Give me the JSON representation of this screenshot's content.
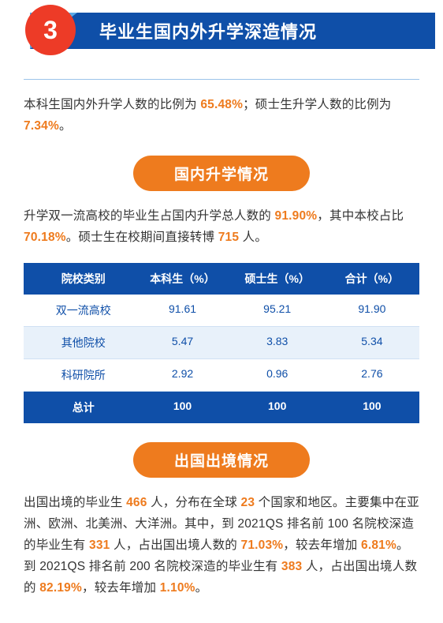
{
  "header": {
    "number": "3",
    "title": "毕业生国内外升学深造情况",
    "circle_bg": "#ed3b27",
    "banner_bg": "#0f4fa8",
    "chevron_bg": "#5aa9e6"
  },
  "intro": {
    "t1": "本科生国内外升学人数的比例为 ",
    "v1": "65.48%",
    "t2": "；硕士生升学人数的比例为 ",
    "v2": "7.34%",
    "t3": "。"
  },
  "sec_domestic": {
    "pill": "国内升学情况",
    "p": {
      "t1": "升学双一流高校的毕业生占国内升学总人数的 ",
      "v1": "91.90%",
      "t2": "，其中本校占比 ",
      "v2": "70.18%",
      "t3": "。硕士生在校期间直接转博 ",
      "v3": "715",
      "t4": " 人。"
    },
    "table": {
      "head": [
        "院校类别",
        "本科生（%）",
        "硕士生（%）",
        "合计（%）"
      ],
      "rows": [
        [
          "双一流高校",
          "91.61",
          "95.21",
          "91.90"
        ],
        [
          "其他院校",
          "5.47",
          "3.83",
          "5.34"
        ],
        [
          "科研院所",
          "2.92",
          "0.96",
          "2.76"
        ]
      ],
      "foot": [
        "总计",
        "100",
        "100",
        "100"
      ]
    }
  },
  "sec_abroad": {
    "pill": "出国出境情况",
    "p": {
      "t1": "出国出境的毕业生 ",
      "v1": "466",
      "t2": " 人，分布在全球 ",
      "v2": "23",
      "t3": " 个国家和地区。主要集中在亚洲、欧洲、北美洲、大洋洲。其中，到 2021QS 排名前 100 名院校深造的毕业生有 ",
      "v3": "331",
      "t4": " 人，占出国出境人数的 ",
      "v4": "71.03%",
      "t5": "，较去年增加 ",
      "v5": "6.81%",
      "t6": "。到 2021QS 排名前 200 名院校深造的毕业生有 ",
      "v6": "383",
      "t7": " 人，占出国出境人数的 ",
      "v7": "82.19%",
      "t8": "，较去年增加 ",
      "v8": "1.10%",
      "t9": "。"
    }
  }
}
